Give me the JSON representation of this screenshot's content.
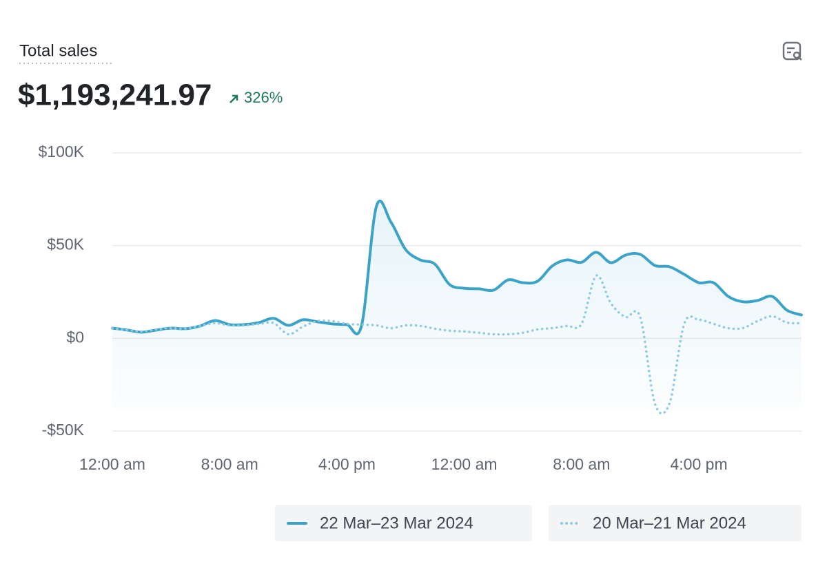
{
  "summary": {
    "label": "Total sales",
    "value": "$1,193,241.97",
    "change": "326%"
  },
  "chart_data": {
    "type": "line",
    "categories": [
      "12:00 am",
      null,
      null,
      null,
      null,
      null,
      null,
      null,
      "8:00 am",
      null,
      null,
      null,
      null,
      null,
      null,
      null,
      "4:00 pm",
      null,
      null,
      null,
      null,
      null,
      null,
      null,
      "12:00 am",
      null,
      null,
      null,
      null,
      null,
      null,
      null,
      "8:00 am",
      null,
      null,
      null,
      null,
      null,
      null,
      null,
      "4:00 pm",
      null,
      null,
      null,
      null,
      null,
      null,
      null
    ],
    "series": [
      {
        "name": "22 Mar–23 Mar 2024",
        "color": "#3ba3c8",
        "style": "solid",
        "values": [
          5500,
          4500,
          3300,
          4500,
          5500,
          5200,
          6700,
          9600,
          7400,
          7400,
          8500,
          10800,
          7000,
          10000,
          8900,
          7800,
          7400,
          7000,
          70900,
          62700,
          47900,
          42300,
          40000,
          29000,
          27000,
          26700,
          26000,
          31500,
          30000,
          30800,
          39000,
          42300,
          41000,
          46400,
          40800,
          44900,
          45300,
          39300,
          38600,
          34500,
          30000,
          30000,
          22600,
          19700,
          20400,
          22600,
          15200,
          12600
        ]
      },
      {
        "name": "20 Mar–21 Mar 2024",
        "color": "#8fcae0",
        "style": "dotted",
        "values": [
          5500,
          4500,
          3700,
          4800,
          5500,
          5200,
          6700,
          8200,
          7000,
          7000,
          7800,
          8200,
          2200,
          6300,
          9300,
          9300,
          7800,
          7400,
          7000,
          5500,
          7000,
          6700,
          5200,
          4100,
          3700,
          3000,
          2200,
          2200,
          3000,
          4800,
          5500,
          6700,
          7800,
          33800,
          18900,
          11500,
          11500,
          -35000,
          -35000,
          7800,
          10000,
          7800,
          5500,
          5500,
          9300,
          11900,
          8500,
          8200
        ]
      }
    ],
    "ylim": [
      -50000,
      100000
    ],
    "yticks": [
      {
        "value": -50000,
        "label": "-$50K"
      },
      {
        "value": 0,
        "label": "$0"
      },
      {
        "value": 50000,
        "label": "$50K"
      },
      {
        "value": 100000,
        "label": "$100K"
      }
    ],
    "grid": true
  }
}
